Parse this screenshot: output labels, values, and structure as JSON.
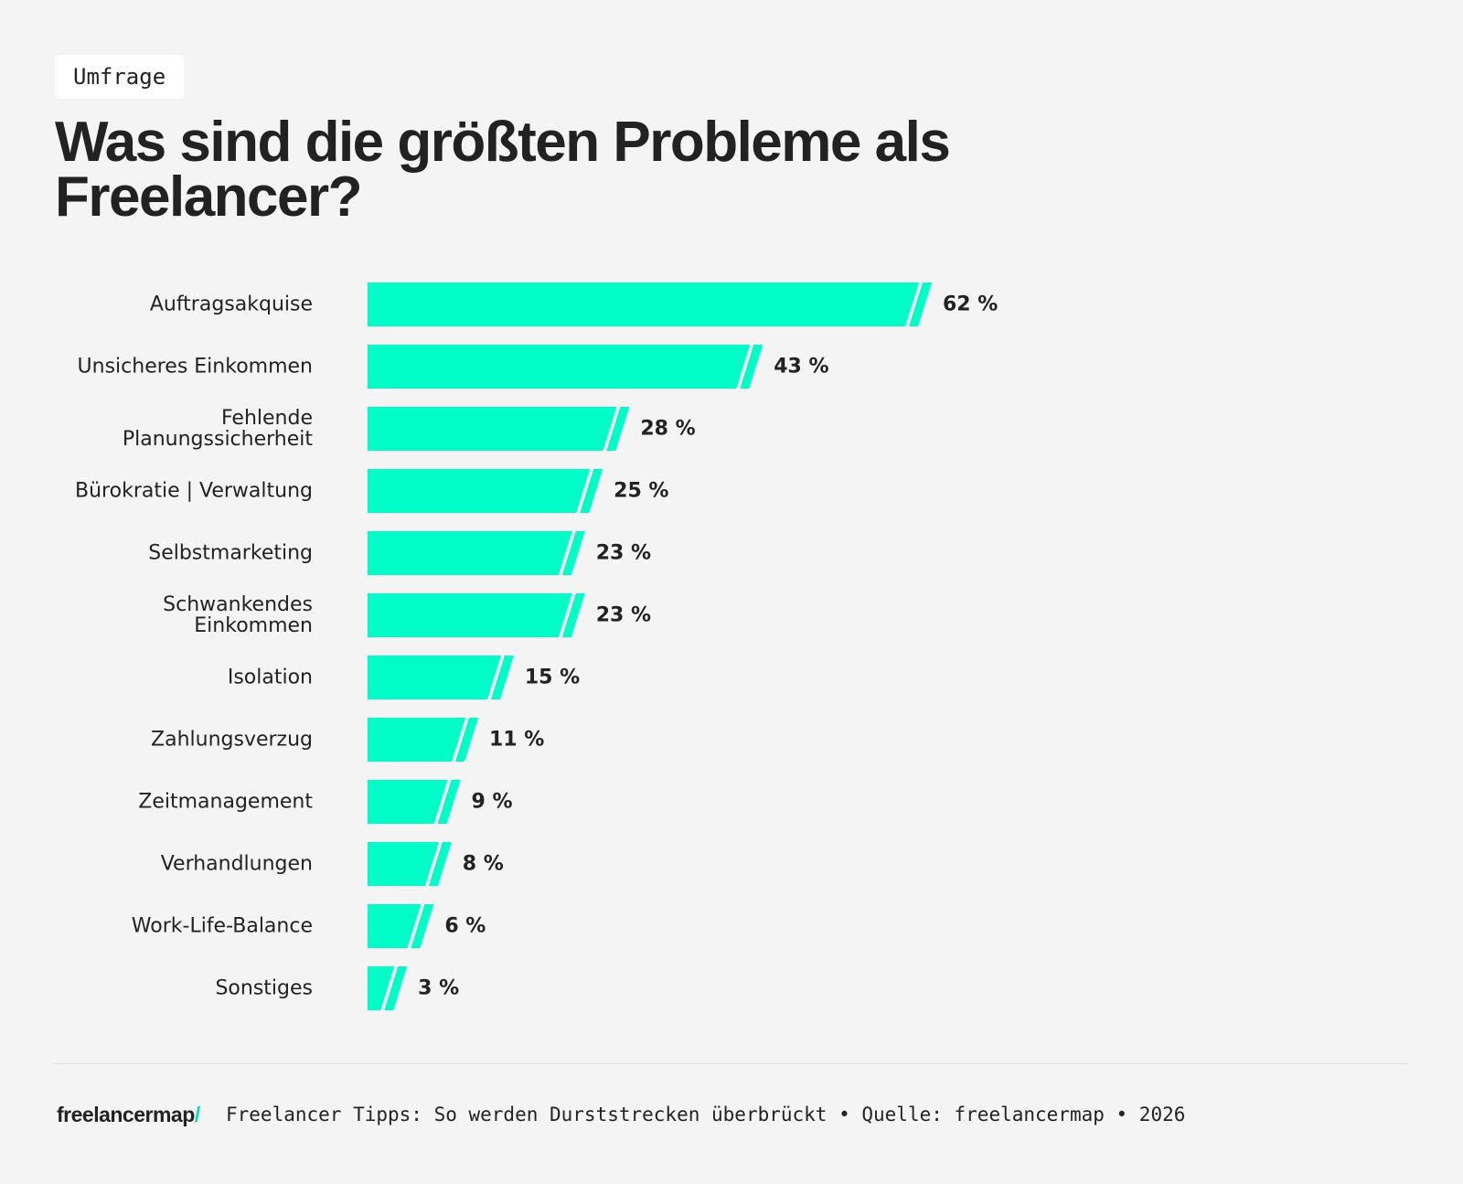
{
  "tag": "Umfrage",
  "chart_data": {
    "type": "bar",
    "orientation": "horizontal",
    "title": "Was sind die größten Probleme als Freelancer?",
    "categories": [
      "Auftragsakquise",
      "Unsicheres Einkommen",
      "Fehlende\nPlanungssicherheit",
      "Bürokratie | Verwaltung",
      "Selbstmarketing",
      "Schwankendes\nEinkommen",
      "Isolation",
      "Zahlungsverzug",
      "Zeitmanagement",
      "Verhandlungen",
      "Work-Life-Balance",
      "Sonstiges"
    ],
    "values": [
      62,
      43,
      28,
      25,
      23,
      23,
      15,
      11,
      9,
      8,
      6,
      3
    ],
    "value_labels": [
      "62 %",
      "43 %",
      "28 %",
      "25 %",
      "23 %",
      "23 %",
      "15 %",
      "11 %",
      "9 %",
      "8 %",
      "6 %",
      "3 %"
    ],
    "color": "#00fdc7"
  },
  "footer": {
    "logo": "freelancermap",
    "logo_mark": "/",
    "source": "Freelancer Tipps: So werden Durststrecken überbrückt • Quelle: freelancermap • 2026"
  }
}
